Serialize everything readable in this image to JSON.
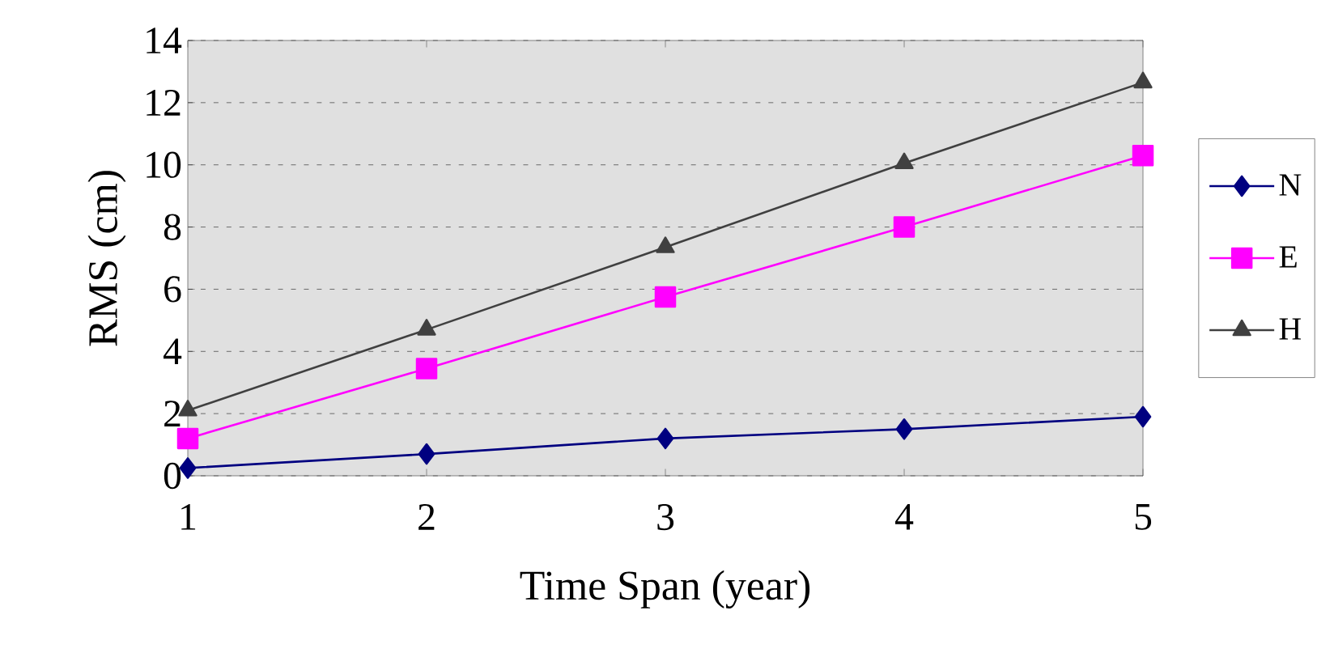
{
  "chart_data": {
    "type": "line",
    "xlabel": "Time Span (year)",
    "ylabel": "RMS (cm)",
    "x": [
      1,
      2,
      3,
      4,
      5
    ],
    "series": [
      {
        "name": "N",
        "color": "#000080",
        "marker": "diamond",
        "values": [
          0.25,
          0.7,
          1.2,
          1.5,
          1.9
        ]
      },
      {
        "name": "E",
        "color": "#ff00ff",
        "marker": "square",
        "values": [
          1.2,
          3.45,
          5.75,
          8.0,
          10.3
        ]
      },
      {
        "name": "H",
        "color": "#404040",
        "marker": "triangle",
        "values": [
          2.1,
          4.7,
          7.35,
          10.05,
          12.65
        ]
      }
    ],
    "xlim": [
      1,
      5
    ],
    "xticks": [
      1,
      2,
      3,
      4,
      5
    ],
    "ylim": [
      0,
      14
    ],
    "yticks": [
      0,
      2,
      4,
      6,
      8,
      10,
      12,
      14
    ],
    "grid": "y",
    "legend": "right",
    "line_style": "solid"
  }
}
